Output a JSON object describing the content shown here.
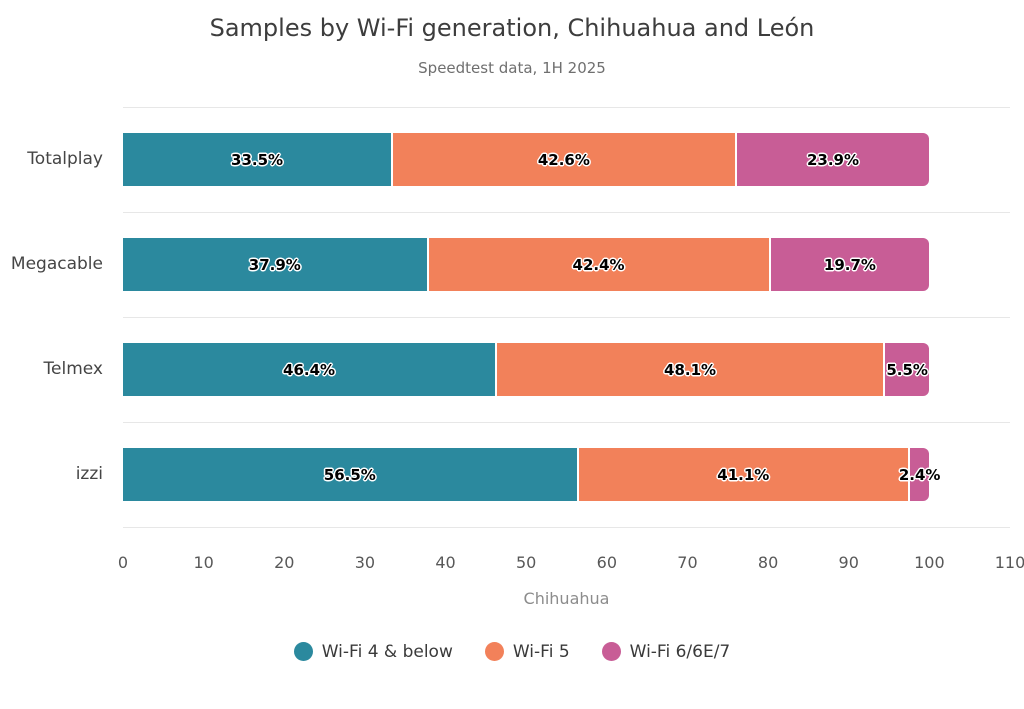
{
  "chart_data": {
    "type": "bar",
    "orientation": "horizontal-stacked",
    "title": "Samples by Wi-Fi generation, Chihuahua and León",
    "subtitle": "Speedtest data, 1H 2025",
    "xlabel": "Chihuahua",
    "categories": [
      "Totalplay",
      "Megacable",
      "Telmex",
      "izzi"
    ],
    "series": [
      {
        "name": "Wi-Fi 4 & below",
        "color": "#2B899E",
        "values": [
          33.5,
          37.9,
          46.4,
          56.5
        ]
      },
      {
        "name": "Wi-Fi 5",
        "color": "#F2815A",
        "values": [
          42.6,
          42.4,
          48.1,
          41.1
        ]
      },
      {
        "name": "Wi-Fi 6/6E/7",
        "color": "#C85D96",
        "values": [
          23.9,
          19.7,
          5.5,
          2.4
        ]
      }
    ],
    "value_suffix": "%",
    "x_ticks": [
      0,
      10,
      20,
      30,
      40,
      50,
      60,
      70,
      80,
      90,
      100,
      110
    ],
    "xlim": [
      0,
      110
    ],
    "grid": "row-separators",
    "grid_color": "#e7e7e7",
    "legend_position": "bottom"
  }
}
